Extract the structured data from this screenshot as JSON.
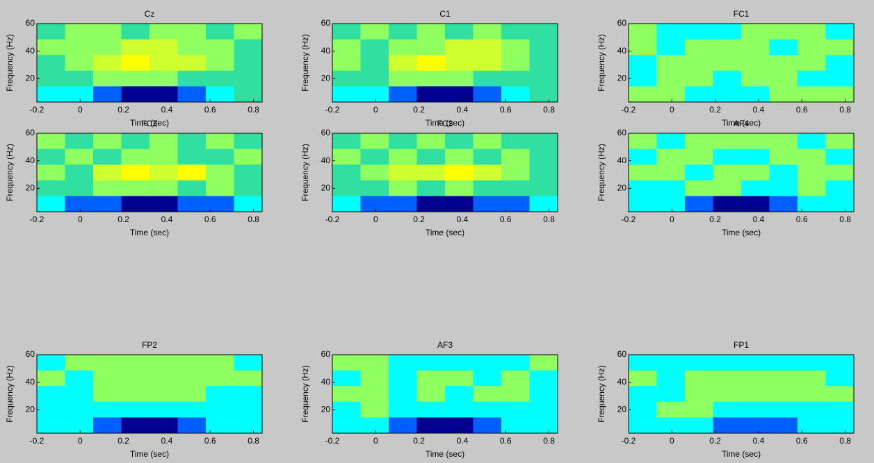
{
  "chart_data": [
    {
      "type": "contour",
      "title": "Cz",
      "xlabel": "Time (sec)",
      "ylabel": "Frequency (Hz)",
      "xlim": [
        -0.2,
        0.84
      ],
      "ylim": [
        3,
        60
      ],
      "xticks": [
        -0.2,
        0,
        0.2,
        0.4,
        0.6,
        0.8
      ],
      "yticks": [
        20,
        40,
        60
      ],
      "colors": [
        "#000090",
        "#0060ff",
        "#00ffff",
        "#30e0a0",
        "#90ff60",
        "#d0ff30",
        "#ffff00",
        "#ff9000"
      ],
      "z": [
        [
          4,
          5,
          5,
          4,
          5,
          5,
          4,
          5
        ],
        [
          5,
          5,
          5,
          6,
          6,
          5,
          5,
          4
        ],
        [
          4,
          5,
          6,
          7,
          6,
          6,
          5,
          4
        ],
        [
          4,
          4,
          5,
          5,
          5,
          4,
          4,
          4
        ],
        [
          3,
          3,
          2,
          1,
          1,
          2,
          3,
          4
        ]
      ]
    },
    {
      "type": "contour",
      "title": "C1",
      "xlabel": "Time (sec)",
      "ylabel": "Frequency (Hz)",
      "xlim": [
        -0.2,
        0.84
      ],
      "ylim": [
        3,
        60
      ],
      "xticks": [
        -0.2,
        0,
        0.2,
        0.4,
        0.6,
        0.8
      ],
      "yticks": [
        20,
        40,
        60
      ],
      "colors": [
        "#000090",
        "#0060ff",
        "#00ffff",
        "#30e0a0",
        "#90ff60",
        "#d0ff30",
        "#ffff00",
        "#ff9000"
      ],
      "z": [
        [
          4,
          5,
          4,
          5,
          4,
          5,
          4,
          4
        ],
        [
          5,
          4,
          5,
          5,
          6,
          6,
          5,
          4
        ],
        [
          5,
          4,
          6,
          7,
          6,
          6,
          5,
          4
        ],
        [
          4,
          4,
          5,
          5,
          5,
          4,
          4,
          4
        ],
        [
          3,
          3,
          2,
          1,
          1,
          2,
          3,
          4
        ]
      ]
    },
    {
      "type": "contour",
      "title": "FC1",
      "xlabel": "Time (sec)",
      "ylabel": "Frequency (Hz)",
      "xlim": [
        -0.2,
        0.84
      ],
      "ylim": [
        3,
        60
      ],
      "xticks": [
        -0.2,
        0,
        0.2,
        0.4,
        0.6,
        0.8
      ],
      "yticks": [
        20,
        40,
        60
      ],
      "colors": [
        "#000090",
        "#0060ff",
        "#00ffff",
        "#30e0a0",
        "#90ff60",
        "#d0ff30",
        "#ffff00",
        "#ff9000"
      ],
      "z": [
        [
          5,
          3,
          3,
          3,
          5,
          5,
          5,
          3
        ],
        [
          5,
          3,
          5,
          5,
          5,
          3,
          5,
          5
        ],
        [
          3,
          5,
          5,
          5,
          5,
          5,
          5,
          3
        ],
        [
          3,
          5,
          5,
          3,
          5,
          5,
          3,
          3
        ],
        [
          5,
          5,
          3,
          3,
          3,
          5,
          5,
          5
        ]
      ]
    },
    {
      "type": "contour",
      "title": "FCZ",
      "xlabel": "Time (sec)",
      "ylabel": "Frequency (Hz)",
      "xlim": [
        -0.2,
        0.84
      ],
      "ylim": [
        3,
        60
      ],
      "xticks": [
        -0.2,
        0,
        0.2,
        0.4,
        0.6,
        0.8
      ],
      "yticks": [
        20,
        40,
        60
      ],
      "colors": [
        "#000090",
        "#0060ff",
        "#00ffff",
        "#30e0a0",
        "#90ff60",
        "#d0ff30",
        "#ffff00",
        "#ff9000"
      ],
      "z": [
        [
          5,
          4,
          5,
          4,
          5,
          4,
          5,
          4
        ],
        [
          4,
          5,
          4,
          5,
          5,
          4,
          4,
          5
        ],
        [
          5,
          4,
          6,
          7,
          6,
          7,
          5,
          4
        ],
        [
          4,
          4,
          5,
          5,
          5,
          4,
          5,
          4
        ],
        [
          3,
          2,
          2,
          1,
          1,
          2,
          2,
          3
        ]
      ]
    },
    {
      "type": "contour",
      "title": "FC2",
      "xlabel": "Time (sec)",
      "ylabel": "Frequency (Hz)",
      "xlim": [
        -0.2,
        0.84
      ],
      "ylim": [
        3,
        60
      ],
      "xticks": [
        -0.2,
        0,
        0.2,
        0.4,
        0.6,
        0.8
      ],
      "yticks": [
        20,
        40,
        60
      ],
      "colors": [
        "#000090",
        "#0060ff",
        "#00ffff",
        "#30e0a0",
        "#90ff60",
        "#d0ff30",
        "#ffff00",
        "#ff9000"
      ],
      "z": [
        [
          4,
          5,
          4,
          5,
          4,
          5,
          4,
          4
        ],
        [
          5,
          4,
          5,
          4,
          5,
          4,
          5,
          4
        ],
        [
          4,
          5,
          6,
          6,
          7,
          6,
          5,
          4
        ],
        [
          4,
          4,
          5,
          4,
          5,
          4,
          4,
          4
        ],
        [
          3,
          2,
          2,
          1,
          1,
          2,
          2,
          3
        ]
      ]
    },
    {
      "type": "contour",
      "title": "AF4",
      "xlabel": "Time (sec)",
      "ylabel": "Frequency (Hz)",
      "xlim": [
        -0.2,
        0.84
      ],
      "ylim": [
        3,
        60
      ],
      "xticks": [
        -0.2,
        0,
        0.2,
        0.4,
        0.6,
        0.8
      ],
      "yticks": [
        20,
        40,
        60
      ],
      "colors": [
        "#000090",
        "#0060ff",
        "#00ffff",
        "#30e0a0",
        "#90ff60",
        "#d0ff30",
        "#ffff00",
        "#ff9000"
      ],
      "z": [
        [
          5,
          3,
          5,
          5,
          5,
          5,
          3,
          5
        ],
        [
          3,
          5,
          5,
          3,
          3,
          5,
          5,
          3
        ],
        [
          5,
          5,
          3,
          5,
          5,
          3,
          5,
          5
        ],
        [
          3,
          3,
          5,
          5,
          3,
          3,
          5,
          3
        ],
        [
          3,
          3,
          2,
          1,
          1,
          2,
          3,
          3
        ]
      ]
    },
    {
      "type": "contour",
      "title": "FP2",
      "xlabel": "Time (sec)",
      "ylabel": "Frequency (Hz)",
      "xlim": [
        -0.2,
        0.84
      ],
      "ylim": [
        3,
        60
      ],
      "xticks": [
        -0.2,
        0,
        0.2,
        0.4,
        0.6,
        0.8
      ],
      "yticks": [
        20,
        40,
        60
      ],
      "colors": [
        "#000090",
        "#0060ff",
        "#00ffff",
        "#30e0a0",
        "#90ff60",
        "#d0ff30",
        "#ffff00",
        "#ff9000"
      ],
      "z": [
        [
          3,
          5,
          5,
          5,
          5,
          5,
          5,
          3
        ],
        [
          5,
          3,
          5,
          5,
          5,
          5,
          5,
          5
        ],
        [
          3,
          3,
          5,
          5,
          5,
          5,
          3,
          3
        ],
        [
          3,
          3,
          3,
          3,
          3,
          3,
          3,
          3
        ],
        [
          3,
          3,
          2,
          1,
          1,
          2,
          3,
          3
        ]
      ]
    },
    {
      "type": "contour",
      "title": "AF3",
      "xlabel": "Time (sec)",
      "ylabel": "Frequency (Hz)",
      "xlim": [
        -0.2,
        0.84
      ],
      "ylim": [
        3,
        60
      ],
      "xticks": [
        -0.2,
        0,
        0.2,
        0.4,
        0.6,
        0.8
      ],
      "yticks": [
        20,
        40,
        60
      ],
      "colors": [
        "#000090",
        "#0060ff",
        "#00ffff",
        "#30e0a0",
        "#90ff60",
        "#d0ff30",
        "#ffff00",
        "#ff9000"
      ],
      "z": [
        [
          5,
          5,
          3,
          3,
          3,
          3,
          3,
          5
        ],
        [
          3,
          5,
          3,
          5,
          5,
          3,
          5,
          3
        ],
        [
          5,
          5,
          3,
          5,
          3,
          5,
          5,
          3
        ],
        [
          3,
          5,
          3,
          3,
          3,
          3,
          3,
          3
        ],
        [
          3,
          3,
          2,
          1,
          1,
          2,
          3,
          3
        ]
      ]
    },
    {
      "type": "contour",
      "title": "FP1",
      "xlabel": "Time (sec)",
      "ylabel": "Frequency (Hz)",
      "xlim": [
        -0.2,
        0.84
      ],
      "ylim": [
        3,
        60
      ],
      "xticks": [
        -0.2,
        0,
        0.2,
        0.4,
        0.6,
        0.8
      ],
      "yticks": [
        20,
        40,
        60
      ],
      "colors": [
        "#000090",
        "#0060ff",
        "#00ffff",
        "#30e0a0",
        "#90ff60",
        "#d0ff30",
        "#ffff00",
        "#ff9000"
      ],
      "z": [
        [
          3,
          3,
          3,
          3,
          3,
          3,
          3,
          3
        ],
        [
          5,
          3,
          5,
          5,
          5,
          5,
          5,
          3
        ],
        [
          3,
          3,
          5,
          5,
          5,
          5,
          5,
          5
        ],
        [
          3,
          5,
          5,
          3,
          3,
          3,
          3,
          3
        ],
        [
          3,
          3,
          3,
          2,
          2,
          2,
          3,
          3
        ]
      ]
    }
  ]
}
